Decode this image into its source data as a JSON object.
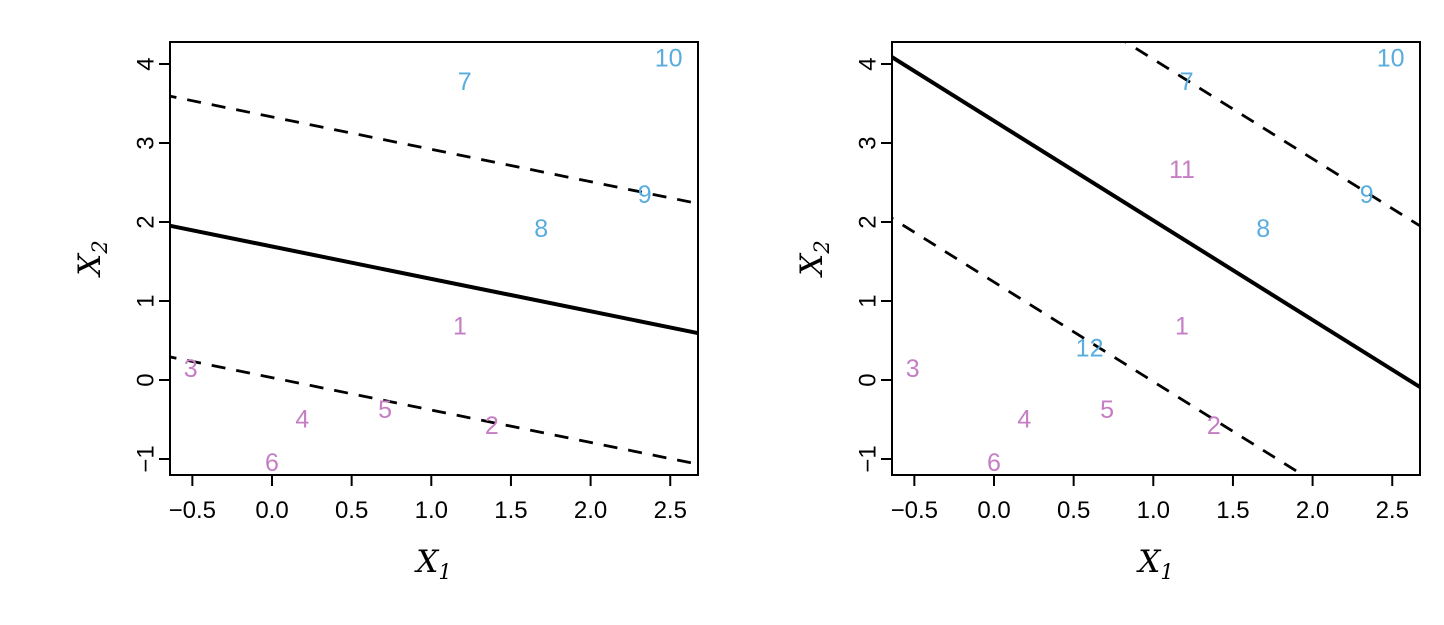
{
  "figure": {
    "background": "#ffffff",
    "colors": {
      "blue": "#58ACDE",
      "purple": "#C57EC4",
      "line": "#000000"
    }
  },
  "chart_data": [
    {
      "type": "scatter",
      "panel": "left",
      "title": "",
      "xlabel": {
        "main": "X",
        "sub": "1"
      },
      "ylabel": {
        "main": "X",
        "sub": "2"
      },
      "xlim": [
        -0.64,
        2.67
      ],
      "ylim": [
        -1.2,
        4.28
      ],
      "grid": false,
      "legend": false,
      "xticks": [
        {
          "v": -0.5,
          "label": "−0.5"
        },
        {
          "v": 0.0,
          "label": "0.0"
        },
        {
          "v": 0.5,
          "label": "0.5"
        },
        {
          "v": 1.0,
          "label": "1.0"
        },
        {
          "v": 1.5,
          "label": "1.5"
        },
        {
          "v": 2.0,
          "label": "2.0"
        },
        {
          "v": 2.5,
          "label": "2.5"
        }
      ],
      "yticks": [
        {
          "v": -1,
          "label": "−1"
        },
        {
          "v": 0,
          "label": "0"
        },
        {
          "v": 1,
          "label": "1"
        },
        {
          "v": 2,
          "label": "2"
        },
        {
          "v": 3,
          "label": "3"
        },
        {
          "v": 4,
          "label": "4"
        }
      ],
      "lines": [
        {
          "role": "decision-boundary",
          "style": "solid",
          "slope": -0.41,
          "intercept": 1.69
        },
        {
          "role": "margin-upper",
          "style": "dashed",
          "slope": -0.41,
          "intercept": 3.33
        },
        {
          "role": "margin-lower",
          "style": "dashed",
          "slope": -0.41,
          "intercept": 0.03
        }
      ],
      "points": [
        {
          "label": "1",
          "x": 1.18,
          "y": 0.68,
          "class": "purple"
        },
        {
          "label": "2",
          "x": 1.38,
          "y": -0.58,
          "class": "purple"
        },
        {
          "label": "3",
          "x": -0.51,
          "y": 0.14,
          "class": "purple"
        },
        {
          "label": "4",
          "x": 0.19,
          "y": -0.5,
          "class": "purple"
        },
        {
          "label": "5",
          "x": 0.71,
          "y": -0.38,
          "class": "purple"
        },
        {
          "label": "6",
          "x": 0.0,
          "y": -1.05,
          "class": "purple"
        },
        {
          "label": "7",
          "x": 1.21,
          "y": 3.77,
          "class": "blue"
        },
        {
          "label": "8",
          "x": 1.69,
          "y": 1.91,
          "class": "blue"
        },
        {
          "label": "9",
          "x": 2.34,
          "y": 2.34,
          "class": "blue"
        },
        {
          "label": "10",
          "x": 2.49,
          "y": 4.07,
          "class": "blue"
        }
      ]
    },
    {
      "type": "scatter",
      "panel": "right",
      "title": "",
      "xlabel": {
        "main": "X",
        "sub": "1"
      },
      "ylabel": {
        "main": "X",
        "sub": "2"
      },
      "xlim": [
        -0.64,
        2.67
      ],
      "ylim": [
        -1.2,
        4.28
      ],
      "grid": false,
      "legend": false,
      "xticks": [
        {
          "v": -0.5,
          "label": "−0.5"
        },
        {
          "v": 0.0,
          "label": "0.0"
        },
        {
          "v": 0.5,
          "label": "0.5"
        },
        {
          "v": 1.0,
          "label": "1.0"
        },
        {
          "v": 1.5,
          "label": "1.5"
        },
        {
          "v": 2.0,
          "label": "2.0"
        },
        {
          "v": 2.5,
          "label": "2.5"
        }
      ],
      "yticks": [
        {
          "v": -1,
          "label": "−1"
        },
        {
          "v": 0,
          "label": "0"
        },
        {
          "v": 1,
          "label": "1"
        },
        {
          "v": 2,
          "label": "2"
        },
        {
          "v": 3,
          "label": "3"
        },
        {
          "v": 4,
          "label": "4"
        }
      ],
      "lines": [
        {
          "role": "decision-boundary",
          "style": "solid",
          "slope": -1.26,
          "intercept": 3.28
        },
        {
          "role": "margin-upper",
          "style": "dashed",
          "slope": -1.26,
          "intercept": 5.32
        },
        {
          "role": "margin-lower",
          "style": "dashed",
          "slope": -1.26,
          "intercept": 1.24
        }
      ],
      "points": [
        {
          "label": "1",
          "x": 1.18,
          "y": 0.68,
          "class": "purple"
        },
        {
          "label": "2",
          "x": 1.38,
          "y": -0.58,
          "class": "purple"
        },
        {
          "label": "3",
          "x": -0.51,
          "y": 0.14,
          "class": "purple"
        },
        {
          "label": "4",
          "x": 0.19,
          "y": -0.5,
          "class": "purple"
        },
        {
          "label": "5",
          "x": 0.71,
          "y": -0.38,
          "class": "purple"
        },
        {
          "label": "6",
          "x": 0.0,
          "y": -1.05,
          "class": "purple"
        },
        {
          "label": "7",
          "x": 1.21,
          "y": 3.77,
          "class": "blue"
        },
        {
          "label": "8",
          "x": 1.69,
          "y": 1.91,
          "class": "blue"
        },
        {
          "label": "9",
          "x": 2.34,
          "y": 2.34,
          "class": "blue"
        },
        {
          "label": "10",
          "x": 2.49,
          "y": 4.07,
          "class": "blue"
        },
        {
          "label": "11",
          "x": 1.18,
          "y": 2.66,
          "class": "purple"
        },
        {
          "label": "12",
          "x": 0.6,
          "y": 0.4,
          "class": "blue"
        }
      ]
    }
  ]
}
